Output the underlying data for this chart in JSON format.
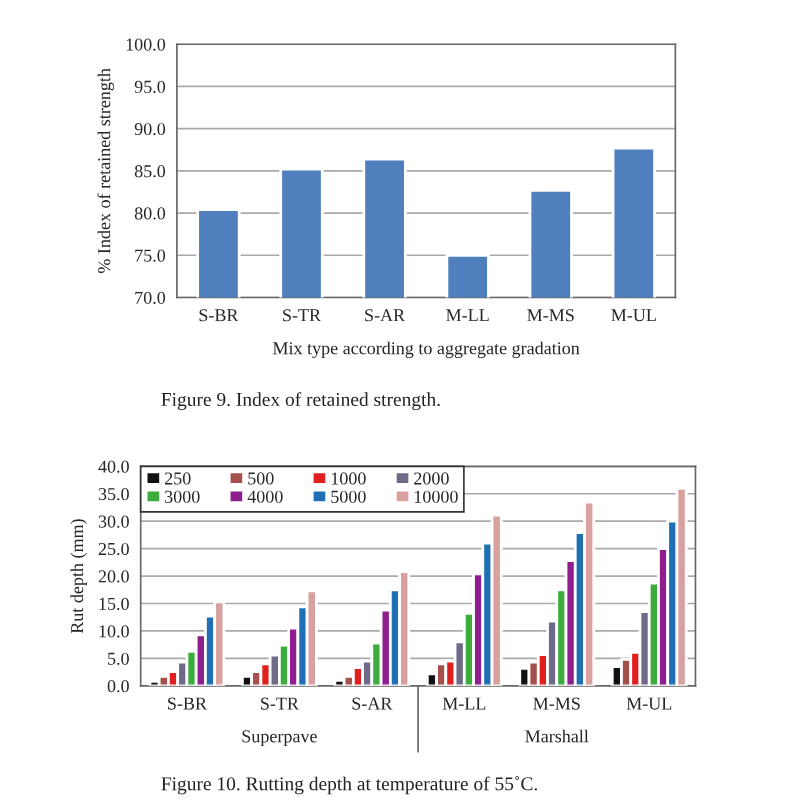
{
  "chart_data": [
    {
      "type": "bar",
      "ylabel": "% Index of retained strength",
      "xlabel": "Mix type according to aggregate gradation",
      "categories": [
        "S-BR",
        "S-TR",
        "S-AR",
        "M-LL",
        "M-MS",
        "M-UL"
      ],
      "series": [
        {
          "color": "#4f7fbd",
          "values": [
            80.4,
            85.2,
            86.4,
            75.0,
            82.7,
            87.7
          ]
        }
      ],
      "ylim": [
        70,
        100
      ],
      "yticks": [
        {
          "value": 70,
          "label": "70.0"
        },
        {
          "value": 75,
          "label": "75.0"
        },
        {
          "value": 80,
          "label": "80.0"
        },
        {
          "value": 85,
          "label": "85.0"
        },
        {
          "value": 90,
          "label": "90.0"
        },
        {
          "value": 95,
          "label": "95.0"
        },
        {
          "value": 100,
          "label": "100.0"
        }
      ],
      "grid": "y",
      "legend": false,
      "annotations": [
        "Figure 9. Index of retained strength."
      ]
    },
    {
      "type": "bar",
      "ylabel": "Rut depth (mm)",
      "categories": [
        "S-BR",
        "S-TR",
        "S-AR",
        "M-LL",
        "M-MS",
        "M-UL"
      ],
      "series": [
        {
          "name": "250",
          "color": "#111111",
          "values": [
            0.8,
            1.7,
            1.0,
            2.2,
            3.2,
            3.5
          ]
        },
        {
          "name": "500",
          "color": "#a5504c",
          "values": [
            1.7,
            2.6,
            1.7,
            4.0,
            4.3,
            4.8
          ]
        },
        {
          "name": "1000",
          "color": "#e0201e",
          "values": [
            2.6,
            4.0,
            3.3,
            4.5,
            5.7,
            6.1
          ]
        },
        {
          "name": "2000",
          "color": "#6e6a88",
          "values": [
            4.3,
            5.6,
            4.5,
            8.0,
            11.8,
            13.5
          ]
        },
        {
          "name": "3000",
          "color": "#3cac3c",
          "values": [
            6.3,
            7.4,
            7.8,
            13.2,
            17.5,
            18.7
          ]
        },
        {
          "name": "4000",
          "color": "#8e1e8e",
          "values": [
            9.3,
            10.5,
            13.8,
            20.4,
            22.8,
            25.0
          ]
        },
        {
          "name": "5000",
          "color": "#1f6fb5",
          "values": [
            12.7,
            14.4,
            17.5,
            26.0,
            27.9,
            30.0
          ]
        },
        {
          "name": "10000",
          "color": "#d8a09e",
          "values": [
            15.3,
            17.3,
            20.8,
            31.1,
            33.5,
            36.0
          ]
        }
      ],
      "ylim": [
        0,
        40
      ],
      "yticks": [
        {
          "value": 0,
          "label": "0.0"
        },
        {
          "value": 5,
          "label": "5.0"
        },
        {
          "value": 10,
          "label": "10.0"
        },
        {
          "value": 15,
          "label": "15.0"
        },
        {
          "value": 20,
          "label": "20.0"
        },
        {
          "value": 25,
          "label": "25.0"
        },
        {
          "value": 30,
          "label": "30.0"
        },
        {
          "value": 35,
          "label": "35.0"
        },
        {
          "value": 40,
          "label": "40.0"
        }
      ],
      "grid": "y",
      "legend": "top left",
      "annotations": [
        "Superpave",
        "Marshall",
        "Figure 10. Rutting depth at temperature of 55˚C."
      ]
    }
  ]
}
